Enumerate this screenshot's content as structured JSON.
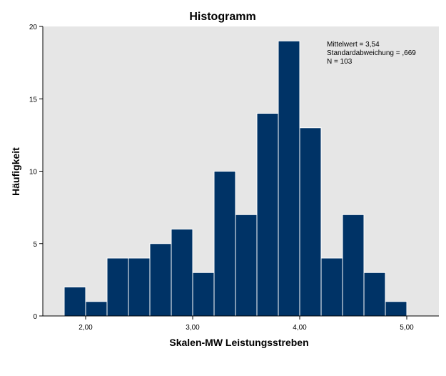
{
  "chart_data": {
    "type": "bar",
    "title": "Histogramm",
    "xlabel": "Skalen-MW Leistungsstreben",
    "ylabel": "Häufigkeit",
    "bin_width": 0.2,
    "bins": [
      {
        "x0": 1.8,
        "x1": 2.0,
        "count": 2
      },
      {
        "x0": 2.0,
        "x1": 2.2,
        "count": 1
      },
      {
        "x0": 2.2,
        "x1": 2.4,
        "count": 4
      },
      {
        "x0": 2.4,
        "x1": 2.6,
        "count": 4
      },
      {
        "x0": 2.6,
        "x1": 2.8,
        "count": 5
      },
      {
        "x0": 2.8,
        "x1": 3.0,
        "count": 6
      },
      {
        "x0": 3.0,
        "x1": 3.2,
        "count": 3
      },
      {
        "x0": 3.2,
        "x1": 3.4,
        "count": 10
      },
      {
        "x0": 3.4,
        "x1": 3.6,
        "count": 7
      },
      {
        "x0": 3.6,
        "x1": 3.8,
        "count": 14
      },
      {
        "x0": 3.8,
        "x1": 4.0,
        "count": 19
      },
      {
        "x0": 4.0,
        "x1": 4.2,
        "count": 13
      },
      {
        "x0": 4.2,
        "x1": 4.4,
        "count": 4
      },
      {
        "x0": 4.4,
        "x1": 4.6,
        "count": 7
      },
      {
        "x0": 4.6,
        "x1": 4.8,
        "count": 3
      },
      {
        "x0": 4.8,
        "x1": 5.0,
        "count": 1
      }
    ],
    "xlim": [
      1.6,
      5.3
    ],
    "ylim": [
      0,
      20
    ],
    "xticks": [
      {
        "value": 2.0,
        "label": "2,00"
      },
      {
        "value": 3.0,
        "label": "3,00"
      },
      {
        "value": 4.0,
        "label": "4,00"
      },
      {
        "value": 5.0,
        "label": "5,00"
      }
    ],
    "yticks": [
      {
        "value": 0,
        "label": "0"
      },
      {
        "value": 5,
        "label": "5"
      },
      {
        "value": 10,
        "label": "10"
      },
      {
        "value": 15,
        "label": "15"
      },
      {
        "value": 20,
        "label": "20"
      }
    ],
    "statistics": [
      "Mittelwert = 3,54",
      "Standardabweichung = ,669",
      "N = 103"
    ],
    "grid": false,
    "colors": {
      "bar_fill": "#003366",
      "bar_edge": "#ffffff",
      "plot_background": "#e6e6e6",
      "axis": "#000000"
    }
  }
}
